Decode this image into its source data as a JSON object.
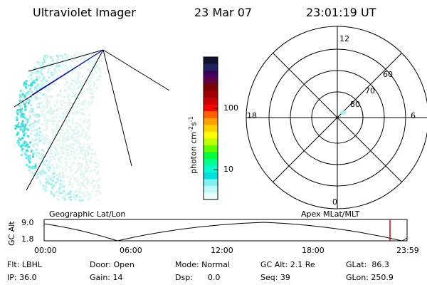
{
  "header": {
    "instrument": "Ultraviolet Imager",
    "date": "23 Mar 07",
    "time": "23:01:19 UT"
  },
  "colorbar": {
    "unit_label": "photon cm",
    "unit_exp1": "-2",
    "unit_mid": "s",
    "unit_exp2": "-1",
    "ticks": [
      "100",
      "10"
    ],
    "colors": [
      "#101030",
      "#202060",
      "#400060",
      "#600040",
      "#800000",
      "#a00000",
      "#cc0000",
      "#ff0000",
      "#ff6000",
      "#ffa000",
      "#ffd000",
      "#ffff00",
      "#c0ff00",
      "#60ff00",
      "#00ff40",
      "#00ff90",
      "#00ffd0",
      "#00e0e0",
      "#80f0f0",
      "#c0f8f8",
      "#e8fcfc"
    ]
  },
  "polar_plot": {
    "mlt_labels": {
      "top": "12",
      "left": "18",
      "right": "6",
      "bottom": "0"
    },
    "lat_labels": [
      "60",
      "70",
      "80"
    ]
  },
  "timeline": {
    "geo_label": "Geographic Lat/Lon",
    "apex_label": "Apex MLat/MLT",
    "axis_title": "GC Alt",
    "y_top": "9.0",
    "y_bottom": "1.8",
    "x_ticks": [
      "00:00",
      "06:00",
      "12:00",
      "18:00",
      "23:59"
    ],
    "marker_color": "#d00000"
  },
  "info": {
    "flt": "Flt: LBHL",
    "ip": "IP: 36.0",
    "door": "Door: Open",
    "gain": "Gain: 14",
    "mode": "Mode: Normal",
    "dsp": "Dsp:      0.0",
    "gcalt": "GC Alt: 2.1 Re",
    "seq": "Seq: 39",
    "glat": "GLat:  86.3",
    "glon": "GLon: 250.9"
  }
}
